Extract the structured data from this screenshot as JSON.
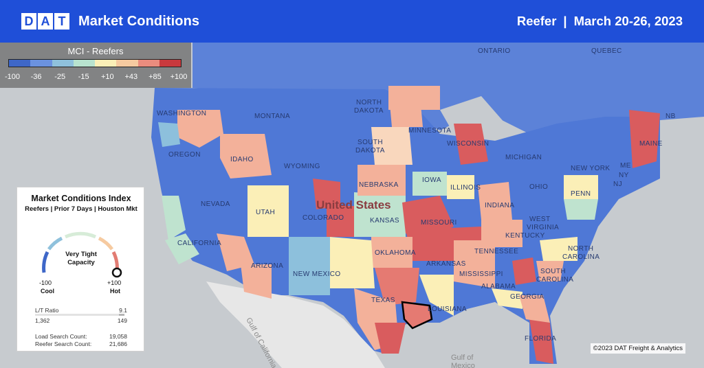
{
  "header": {
    "logo_letters": [
      "D",
      "A",
      "T"
    ],
    "app_title": "Market Conditions",
    "equipment": "Reefer",
    "separator": "|",
    "date_range": "March 20-26, 2023"
  },
  "legend": {
    "title": "MCI - Reefers",
    "ticks": [
      "-100",
      "-36",
      "-25",
      "-15",
      "+10",
      "+43",
      "+85",
      "+100"
    ],
    "colors": [
      "#3e67c8",
      "#6b92df",
      "#8fc1dc",
      "#b8e3cf",
      "#fbefb7",
      "#f6caa0",
      "#ea8c7e",
      "#c9393d"
    ]
  },
  "card": {
    "title": "Market Conditions Index",
    "subtitle": "Reefers | Prior 7 Days | Houston Mkt",
    "status_line1": "Very Tight",
    "status_line2": "Capacity",
    "min_value": "-100",
    "min_label": "Cool",
    "max_value": "+100",
    "max_label": "Hot",
    "gauge_level": 1.0,
    "lt_ratio_label": "L/T Ratio",
    "lt_ratio_value": "9.1",
    "loads": "1,362",
    "trucks": "149",
    "load_search_label": "Load Search Count:",
    "load_search_value": "19,058",
    "reefer_search_label": "Reefer Search Count:",
    "reefer_search_value": "21,686"
  },
  "map": {
    "labels": {
      "washington": "WASHINGTON",
      "oregon": "OREGON",
      "idaho": "IDAHO",
      "montana": "MONTANA",
      "wyoming": "WYOMING",
      "nevada": "NEVADA",
      "utah": "UTAH",
      "colorado": "COLORADO",
      "california": "CALIFORNIA",
      "arizona": "ARIZONA",
      "new_mexico": "NEW MEXICO",
      "north_dakota_1": "NORTH",
      "north_dakota_2": "DAKOTA",
      "south_dakota_1": "SOUTH",
      "south_dakota_2": "DAKOTA",
      "nebraska": "NEBRASKA",
      "kansas": "KANSAS",
      "oklahoma": "OKLAHOMA",
      "texas": "TEXAS",
      "minnesota": "MINNESOTA",
      "iowa": "IOWA",
      "missouri": "MISSOURI",
      "arkansas": "ARKANSAS",
      "louisiana": "LOUISIANA",
      "wisconsin": "WISCONSIN",
      "illinois": "ILLINOIS",
      "michigan": "MICHIGAN",
      "indiana": "INDIANA",
      "kentucky": "KENTUCKY",
      "tennessee": "TENNESSEE",
      "mississippi": "MISSISSIPPI",
      "alabama": "ALABAMA",
      "georgia": "GEORGIA",
      "florida": "FLORIDA",
      "south_carolina_1": "SOUTH",
      "south_carolina_2": "CAROLINA",
      "north_carolina_1": "NORTH",
      "north_carolina_2": "CAROLINA",
      "virginia_1": "WEST",
      "virginia_2": "VIRGINIA",
      "ohio": "OHIO",
      "penn": "PENN",
      "new_york": "NEW YORK",
      "maine": "MAINE",
      "ontario": "ONTARIO",
      "quebec": "QUEBEC",
      "nb": "NB",
      "me": "ME",
      "ny": "NY",
      "nj": "NJ",
      "country": "United States",
      "gulf_california": "Gulf of California",
      "gulf_mexico_1": "Gulf of",
      "gulf_mexico_2": "Mexico"
    }
  },
  "footer": {
    "copyright": "©2023 DAT Freight & Analytics"
  }
}
